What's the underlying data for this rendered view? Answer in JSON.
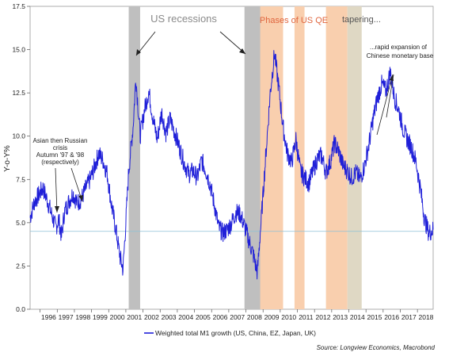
{
  "chart_data": {
    "type": "line",
    "title": "",
    "ylabel": "Y-o-Y%",
    "xlabel": "",
    "ylim": [
      0,
      17.5
    ],
    "xlim": [
      "1995-06",
      "2018-12"
    ],
    "yticks": [
      "0.0",
      "2.5",
      "5.0",
      "7.5",
      "10.0",
      "12.5",
      "15.0",
      "17.5"
    ],
    "xtick_labels": [
      "1996",
      "1997",
      "1998",
      "1999",
      "2000",
      "2001",
      "2002",
      "2003",
      "2004",
      "2005",
      "2006",
      "2007",
      "2008",
      "2009",
      "2010",
      "2011",
      "2012",
      "2013",
      "2014",
      "2015",
      "2016",
      "2017",
      "2018"
    ],
    "grid": false,
    "legend_position": "bottom-center",
    "reference_line": {
      "y": 4.5,
      "color": "#8cc0d6"
    },
    "series": [
      {
        "name": "Weighted total M1 growth (US, China, EZ, Japan, UK)",
        "color": "#1f1fd8",
        "points": [
          [
            "1995-06",
            5.3
          ],
          [
            "1995-09",
            6.2
          ],
          [
            "1995-12",
            6.6
          ],
          [
            "1996-03",
            7.0
          ],
          [
            "1996-06",
            6.3
          ],
          [
            "1996-09",
            5.5
          ],
          [
            "1996-12",
            4.7
          ],
          [
            "1997-02",
            5.2
          ],
          [
            "1997-04",
            4.2
          ],
          [
            "1997-06",
            5.6
          ],
          [
            "1997-09",
            6.2
          ],
          [
            "1997-12",
            6.7
          ],
          [
            "1998-03",
            6.1
          ],
          [
            "1998-06",
            6.4
          ],
          [
            "1998-09",
            7.0
          ],
          [
            "1998-12",
            7.5
          ],
          [
            "1999-03",
            8.2
          ],
          [
            "1999-06",
            9.0
          ],
          [
            "1999-09",
            8.6
          ],
          [
            "1999-12",
            7.8
          ],
          [
            "2000-03",
            6.0
          ],
          [
            "2000-06",
            4.6
          ],
          [
            "2000-09",
            3.0
          ],
          [
            "2000-11",
            2.3
          ],
          [
            "2001-01",
            5.0
          ],
          [
            "2001-03",
            8.0
          ],
          [
            "2001-06",
            10.5
          ],
          [
            "2001-08",
            13.4
          ],
          [
            "2001-11",
            10.0
          ],
          [
            "2002-02",
            11.5
          ],
          [
            "2002-05",
            12.6
          ],
          [
            "2002-08",
            11.0
          ],
          [
            "2002-11",
            9.8
          ],
          [
            "2003-02",
            11.4
          ],
          [
            "2003-05",
            10.2
          ],
          [
            "2003-08",
            11.0
          ],
          [
            "2003-12",
            10.0
          ],
          [
            "2004-03",
            9.2
          ],
          [
            "2004-06",
            8.4
          ],
          [
            "2004-09",
            7.8
          ],
          [
            "2004-12",
            8.0
          ],
          [
            "2005-03",
            7.6
          ],
          [
            "2005-06",
            8.6
          ],
          [
            "2005-09",
            8.0
          ],
          [
            "2005-12",
            7.2
          ],
          [
            "2006-03",
            6.0
          ],
          [
            "2006-06",
            4.7
          ],
          [
            "2006-09",
            4.4
          ],
          [
            "2006-12",
            4.6
          ],
          [
            "2007-03",
            5.0
          ],
          [
            "2007-06",
            5.6
          ],
          [
            "2007-09",
            5.5
          ],
          [
            "2007-12",
            4.8
          ],
          [
            "2008-03",
            4.0
          ],
          [
            "2008-06",
            3.2
          ],
          [
            "2008-09",
            2.1
          ],
          [
            "2008-12",
            5.5
          ],
          [
            "2009-03",
            9.0
          ],
          [
            "2009-06",
            12.5
          ],
          [
            "2009-09",
            14.8
          ],
          [
            "2009-12",
            12.8
          ],
          [
            "2010-03",
            10.5
          ],
          [
            "2010-06",
            9.0
          ],
          [
            "2010-09",
            8.5
          ],
          [
            "2010-12",
            9.8
          ],
          [
            "2011-03",
            8.0
          ],
          [
            "2011-06",
            7.6
          ],
          [
            "2011-09",
            7.3
          ],
          [
            "2011-12",
            8.0
          ],
          [
            "2012-03",
            8.7
          ],
          [
            "2012-06",
            8.9
          ],
          [
            "2012-09",
            7.9
          ],
          [
            "2012-12",
            8.5
          ],
          [
            "2013-03",
            9.6
          ],
          [
            "2013-06",
            9.1
          ],
          [
            "2013-09",
            8.3
          ],
          [
            "2013-12",
            8.0
          ],
          [
            "2014-03",
            7.6
          ],
          [
            "2014-06",
            7.9
          ],
          [
            "2014-09",
            7.5
          ],
          [
            "2014-12",
            8.3
          ],
          [
            "2015-03",
            9.5
          ],
          [
            "2015-06",
            11.0
          ],
          [
            "2015-09",
            12.2
          ],
          [
            "2015-12",
            13.0
          ],
          [
            "2016-03",
            12.6
          ],
          [
            "2016-06",
            13.7
          ],
          [
            "2016-09",
            12.2
          ],
          [
            "2016-12",
            11.5
          ],
          [
            "2017-03",
            10.4
          ],
          [
            "2017-06",
            9.8
          ],
          [
            "2017-09",
            9.3
          ],
          [
            "2017-12",
            8.5
          ],
          [
            "2018-03",
            7.0
          ],
          [
            "2018-06",
            5.2
          ],
          [
            "2018-09",
            4.4
          ],
          [
            "2018-12",
            4.6
          ]
        ]
      }
    ],
    "shaded_periods": [
      {
        "label": "US recessions",
        "start": "2001-03",
        "end": "2001-11",
        "color": "#bfbfbf"
      },
      {
        "label": "US recessions",
        "start": "2007-12",
        "end": "2009-06",
        "color": "#bfbfbf"
      },
      {
        "label": "Phases of US QE",
        "start": "2008-11",
        "end": "2010-03",
        "color": "#f9cfae"
      },
      {
        "label": "Phases of US QE",
        "start": "2010-11",
        "end": "2011-06",
        "color": "#f9cfae"
      },
      {
        "label": "Phases of US QE",
        "start": "2012-09",
        "end": "2013-12",
        "color": "#f9cfae"
      },
      {
        "label": "tapering...",
        "start": "2013-12",
        "end": "2014-10",
        "color": "#dfd8c4"
      }
    ],
    "annotations": {
      "us_recessions": "US recessions",
      "phases_qe": "Phases of US QE",
      "tapering": "tapering...",
      "asian_crisis": [
        "Asian then Russian",
        "crisis",
        "Autumn '97 & '98",
        "(respectively)"
      ],
      "china_expansion": [
        "...rapid expansion of",
        "Chinese monetary base"
      ]
    },
    "source": "Source: Longview Economics, Macrobond"
  }
}
